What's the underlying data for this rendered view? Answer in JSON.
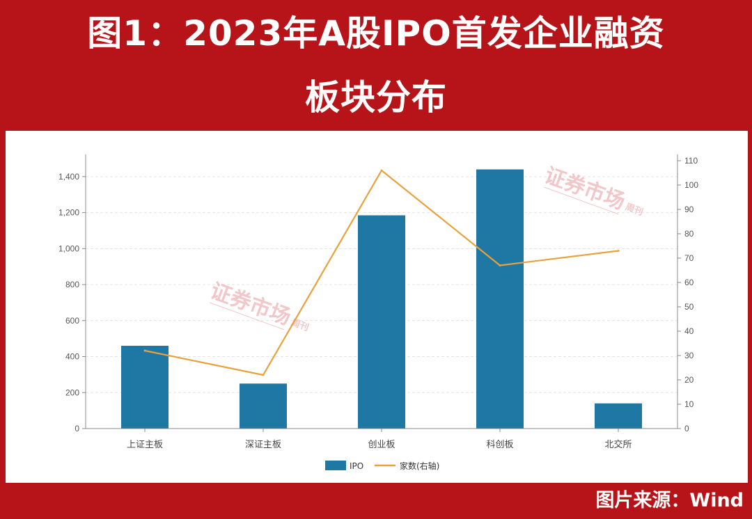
{
  "title": {
    "line1": "图1：2023年A股IPO首发企业融资",
    "line2": "板块分布"
  },
  "source": "图片来源：Wind",
  "colors": {
    "background": "#b71419",
    "bar": "#1f77a4",
    "line": "#e8a23c",
    "watermark": "#e79aa0"
  },
  "watermark": {
    "text": "证券市场",
    "sub": "周刊"
  },
  "chart_data": {
    "type": "bar",
    "categories": [
      "上证主板",
      "深证主板",
      "创业板",
      "科创板",
      "北交所"
    ],
    "series": [
      {
        "name": "IPO",
        "axis": "left",
        "type": "bar",
        "values": [
          460,
          250,
          1185,
          1440,
          140
        ]
      },
      {
        "name": "家数(右轴)",
        "axis": "right",
        "type": "line",
        "values": [
          32,
          22,
          106,
          67,
          73
        ]
      }
    ],
    "y_left": {
      "min": 0,
      "max": 1400,
      "ticks": [
        0,
        200,
        400,
        600,
        800,
        1000,
        1200,
        1400
      ],
      "tick_labels": [
        "0",
        "200",
        "400",
        "600",
        "800",
        "1,000",
        "1,200",
        "1,400"
      ]
    },
    "y_right": {
      "min": 0,
      "max": 110,
      "ticks": [
        0,
        10,
        20,
        30,
        40,
        50,
        60,
        70,
        80,
        90,
        100,
        110
      ]
    },
    "grid": true,
    "legend": "bottom-center"
  }
}
